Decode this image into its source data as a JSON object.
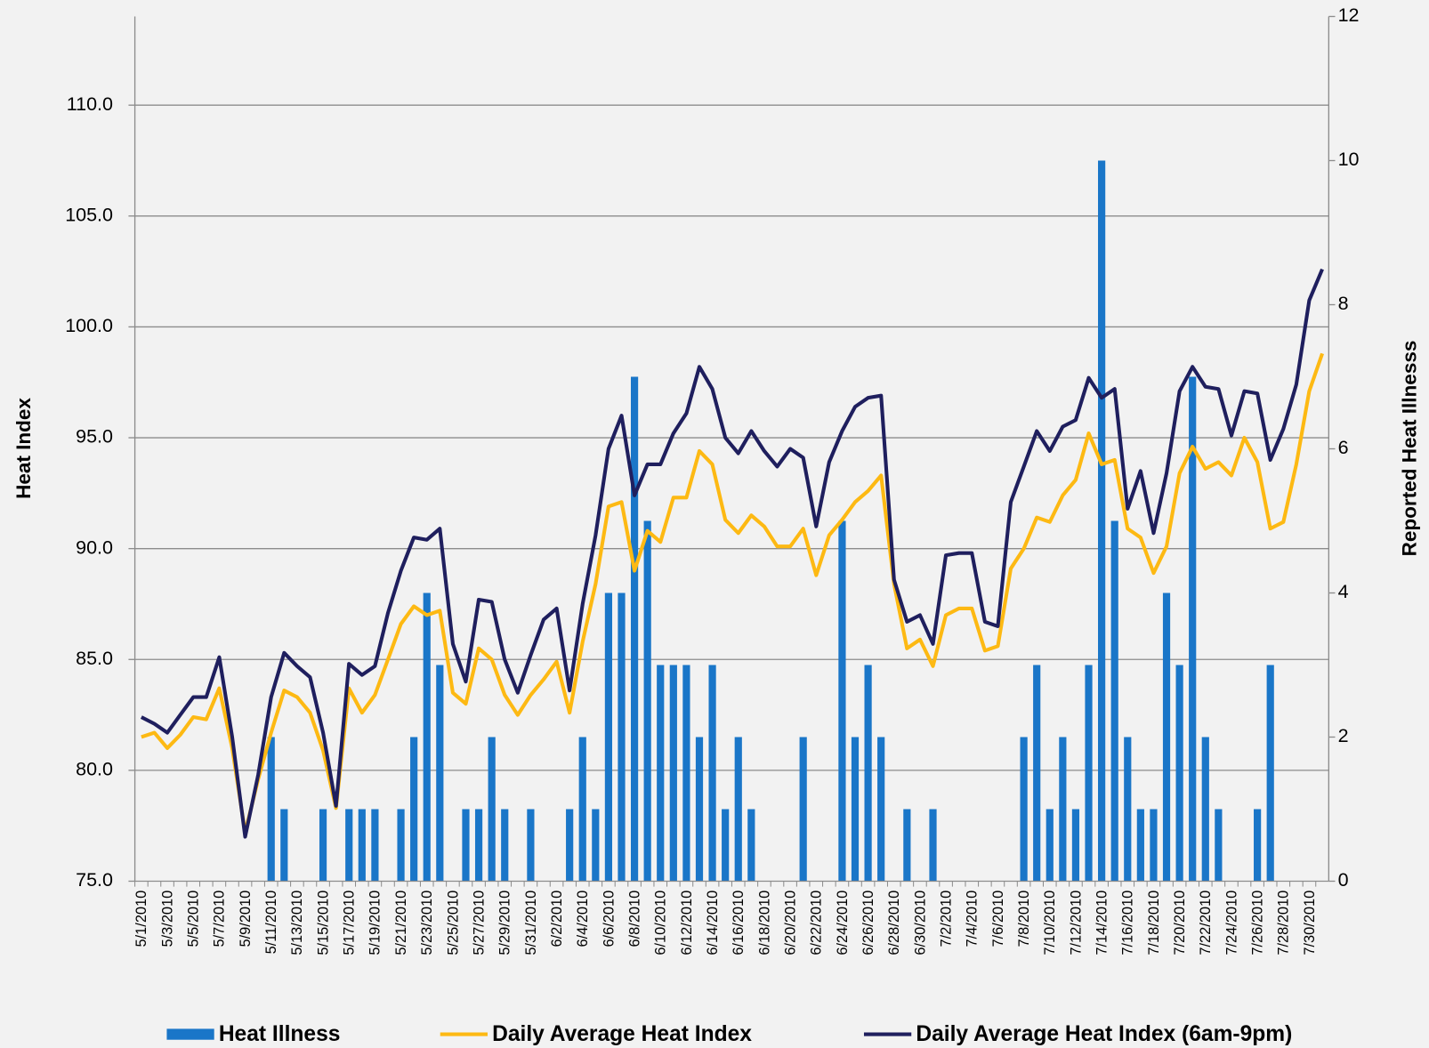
{
  "chart_data": {
    "type": "bar-line",
    "y_label": "Heat Index",
    "y2_label": "Reported Heat Illnesss",
    "categories": [
      "5/1/2010",
      null,
      "5/3/2010",
      null,
      "5/5/2010",
      null,
      "5/7/2010",
      null,
      "5/9/2010",
      null,
      "5/11/2010",
      null,
      "5/13/2010",
      null,
      "5/15/2010",
      null,
      "5/17/2010",
      null,
      "5/19/2010",
      null,
      "5/21/2010",
      null,
      "5/23/2010",
      null,
      "5/25/2010",
      null,
      "5/27/2010",
      null,
      "5/29/2010",
      null,
      "5/31/2010",
      null,
      "6/2/2010",
      null,
      "6/4/2010",
      null,
      "6/6/2010",
      null,
      "6/8/2010",
      null,
      "6/10/2010",
      null,
      "6/12/2010",
      null,
      "6/14/2010",
      null,
      "6/16/2010",
      null,
      "6/18/2010",
      null,
      "6/20/2010",
      null,
      "6/22/2010",
      null,
      "6/24/2010",
      null,
      "6/26/2010",
      null,
      "6/28/2010",
      null,
      "6/30/2010",
      null,
      "7/2/2010",
      null,
      "7/4/2010",
      null,
      "7/6/2010",
      null,
      "7/8/2010",
      null,
      "7/10/2010",
      null,
      "7/12/2010",
      null,
      "7/14/2010",
      null,
      "7/16/2010",
      null,
      "7/18/2010",
      null,
      "7/20/2010",
      null,
      "7/22/2010",
      null,
      "7/24/2010",
      null,
      "7/26/2010",
      null,
      "7/28/2010",
      null,
      "7/30/2010",
      null
    ],
    "series": [
      {
        "name": "Heat Illness",
        "kind": "bar",
        "axis": "y2",
        "color": "#1a76c8",
        "values": [
          0,
          0,
          0,
          0,
          0,
          0,
          0,
          0,
          0,
          0,
          2,
          1,
          0,
          0,
          1,
          0,
          1,
          1,
          1,
          0,
          1,
          2,
          4,
          3,
          0,
          1,
          1,
          2,
          1,
          0,
          1,
          0,
          0,
          1,
          2,
          1,
          4,
          4,
          7,
          5,
          3,
          3,
          3,
          2,
          3,
          1,
          2,
          1,
          0,
          0,
          0,
          2,
          0,
          0,
          5,
          2,
          3,
          2,
          0,
          1,
          0,
          1,
          0,
          0,
          0,
          0,
          0,
          0,
          2,
          3,
          1,
          2,
          1,
          3,
          10,
          5,
          2,
          1,
          1,
          4,
          3,
          7,
          2,
          1,
          0,
          0,
          1,
          3,
          0,
          0,
          0,
          0
        ]
      },
      {
        "name": "Daily Average Heat Index",
        "kind": "line",
        "axis": "y",
        "color": "#fdb913",
        "values": [
          81.5,
          81.7,
          81.0,
          81.6,
          82.4,
          82.3,
          83.7,
          81.0,
          77.2,
          79.6,
          81.7,
          83.6,
          83.3,
          82.6,
          80.9,
          78.3,
          83.7,
          82.6,
          83.4,
          85.0,
          86.6,
          87.4,
          87.0,
          87.2,
          83.5,
          83.0,
          85.5,
          85.0,
          83.4,
          82.5,
          83.4,
          84.1,
          84.9,
          82.6,
          85.8,
          88.4,
          91.9,
          92.1,
          89.0,
          90.8,
          90.3,
          92.3,
          92.3,
          94.4,
          93.8,
          91.3,
          90.7,
          91.5,
          91.0,
          90.1,
          90.1,
          90.9,
          88.8,
          90.6,
          91.3,
          92.1,
          92.6,
          93.3,
          88.4,
          85.5,
          85.9,
          84.7,
          87.0,
          87.3,
          87.3,
          85.4,
          85.6,
          89.1,
          90.0,
          91.4,
          91.2,
          92.4,
          93.1,
          95.2,
          93.8,
          94.0,
          90.9,
          90.5,
          88.9,
          90.1,
          93.4,
          94.6,
          93.6,
          93.9,
          93.3,
          95.0,
          93.9,
          90.9,
          91.2,
          93.8,
          97.1,
          98.8
        ]
      },
      {
        "name": "Daily Average Heat Index (6am-9pm)",
        "kind": "line",
        "axis": "y",
        "color": "#1f1f5e",
        "values": [
          82.4,
          82.1,
          81.7,
          82.5,
          83.3,
          83.3,
          85.1,
          81.5,
          77.0,
          79.8,
          83.3,
          85.3,
          84.7,
          84.2,
          81.7,
          78.4,
          84.8,
          84.3,
          84.7,
          87.1,
          89.0,
          90.5,
          90.4,
          90.9,
          85.7,
          84.0,
          87.7,
          87.6,
          85.0,
          83.5,
          85.2,
          86.8,
          87.3,
          83.6,
          87.5,
          90.6,
          94.5,
          96.0,
          92.4,
          93.8,
          93.8,
          95.2,
          96.1,
          98.2,
          97.2,
          95.0,
          94.3,
          95.3,
          94.4,
          93.7,
          94.5,
          94.1,
          91.0,
          93.9,
          95.3,
          96.4,
          96.8,
          96.9,
          88.6,
          86.7,
          87.0,
          85.7,
          89.7,
          89.8,
          89.8,
          86.7,
          86.5,
          92.1,
          93.7,
          95.3,
          94.4,
          95.5,
          95.8,
          97.7,
          96.8,
          97.2,
          91.8,
          93.5,
          90.7,
          93.4,
          97.1,
          98.2,
          97.3,
          97.2,
          95.1,
          97.1,
          97.0,
          94.0,
          95.4,
          97.4,
          101.2,
          102.6
        ]
      }
    ],
    "ylim": [
      75,
      114
    ],
    "yticks": [
      {
        "value": 75,
        "label": "75.0"
      },
      {
        "value": 80,
        "label": "80.0"
      },
      {
        "value": 85,
        "label": "85.0"
      },
      {
        "value": 90,
        "label": "90.0"
      },
      {
        "value": 95,
        "label": "95.0"
      },
      {
        "value": 100,
        "label": "100.0"
      },
      {
        "value": 105,
        "label": "105.0"
      },
      {
        "value": 110,
        "label": "110.0"
      }
    ],
    "y2lim": [
      0,
      12
    ],
    "y2ticks": [
      0,
      2,
      4,
      6,
      8,
      10,
      12
    ],
    "grid": true,
    "legend": "bottom"
  }
}
